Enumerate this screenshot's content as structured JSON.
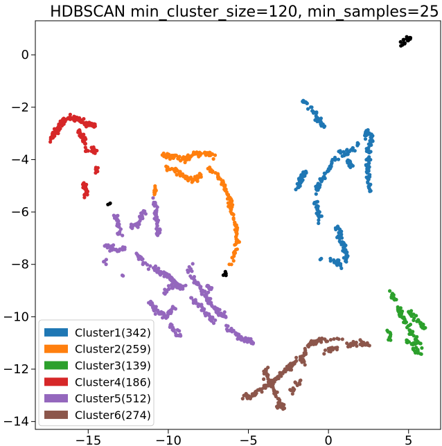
{
  "chart_data": {
    "type": "scatter",
    "title": "HDBSCAN min_cluster_size=120, min_samples=25",
    "xlabel": "",
    "ylabel": "",
    "xlim": [
      -18.3,
      7.0
    ],
    "ylim": [
      -14.3,
      1.3
    ],
    "xticks": [
      -15,
      -10,
      -5,
      0,
      5
    ],
    "yticks": [
      0,
      -2,
      -4,
      -6,
      -8,
      -10,
      -12,
      -14
    ],
    "xtick_labels": [
      "−15",
      "−10",
      "−5",
      "0",
      "5"
    ],
    "ytick_labels": [
      "0",
      "−2",
      "−4",
      "−6",
      "−8",
      "−10",
      "−12",
      "−14"
    ],
    "grid": false,
    "legend_position": "lower-left",
    "series": [
      {
        "name": "Cluster1(342)",
        "color": "#1f77b4",
        "count": 342,
        "paths": [
          [
            [
              -1.6,
              -1.75
            ],
            [
              -1.2,
              -2.0
            ],
            [
              -0.8,
              -2.3
            ],
            [
              -0.5,
              -2.6
            ],
            [
              -0.3,
              -2.8
            ]
          ],
          [
            [
              -1.9,
              -5.1
            ],
            [
              -1.7,
              -4.7
            ],
            [
              -1.4,
              -4.4
            ],
            [
              -2.1,
              -5.2
            ]
          ],
          [
            [
              -0.9,
              -5.4
            ],
            [
              -0.6,
              -5.0
            ],
            [
              -0.2,
              -4.6
            ],
            [
              0.2,
              -4.2
            ],
            [
              0.5,
              -3.9
            ]
          ],
          [
            [
              0.6,
              -3.7
            ],
            [
              1.0,
              -3.8
            ],
            [
              1.5,
              -3.6
            ],
            [
              1.9,
              -3.3
            ]
          ],
          [
            [
              2.3,
              -3.2
            ],
            [
              2.4,
              -2.9
            ],
            [
              2.7,
              -3.1
            ],
            [
              2.5,
              -3.7
            ],
            [
              2.4,
              -4.2
            ],
            [
              2.5,
              -4.7
            ],
            [
              2.6,
              -5.2
            ]
          ],
          [
            [
              -0.8,
              -5.6
            ],
            [
              -0.6,
              -6.0
            ],
            [
              -0.6,
              -6.4
            ]
          ],
          [
            [
              1.2,
              -4.0
            ],
            [
              1.5,
              -4.3
            ]
          ],
          [
            [
              0.5,
              -6.5
            ],
            [
              0.9,
              -7.2
            ],
            [
              1.1,
              -7.6
            ],
            [
              1.1,
              -7.9
            ]
          ],
          [
            [
              0.2,
              -7.8
            ],
            [
              0.7,
              -8.0
            ],
            [
              0.8,
              -8.2
            ]
          ],
          [
            [
              -0.5,
              -7.8
            ]
          ]
        ]
      },
      {
        "name": "Cluster2(259)",
        "color": "#ff7f0e",
        "count": 259,
        "paths": [
          [
            [
              -10.5,
              -3.8
            ],
            [
              -10.0,
              -3.9
            ],
            [
              -9.5,
              -3.9
            ],
            [
              -9.0,
              -4.0
            ],
            [
              -8.5,
              -3.85
            ],
            [
              -8.0,
              -3.8
            ],
            [
              -7.5,
              -3.75
            ],
            [
              -7.1,
              -3.9
            ]
          ],
          [
            [
              -10.2,
              -4.3
            ],
            [
              -9.6,
              -4.4
            ],
            [
              -9.1,
              -4.6
            ],
            [
              -8.5,
              -4.8
            ],
            [
              -8.0,
              -4.6
            ]
          ],
          [
            [
              -6.9,
              -4.6
            ],
            [
              -6.5,
              -5.0
            ],
            [
              -6.2,
              -5.5
            ],
            [
              -6.0,
              -6.0
            ],
            [
              -5.8,
              -6.5
            ],
            [
              -5.7,
              -7.0
            ],
            [
              -5.8,
              -7.5
            ],
            [
              -6.1,
              -8.0
            ]
          ],
          [
            [
              -10.9,
              -5.0
            ],
            [
              -10.8,
              -5.3
            ]
          ],
          [
            [
              -7.5,
              -4.4
            ],
            [
              -7.1,
              -4.5
            ]
          ]
        ]
      },
      {
        "name": "Cluster3(139)",
        "color": "#2ca02c",
        "count": 139,
        "paths": [
          [
            [
              3.9,
              -9.1
            ],
            [
              4.2,
              -9.4
            ],
            [
              4.4,
              -9.7
            ],
            [
              4.7,
              -10.1
            ],
            [
              5.0,
              -10.4
            ],
            [
              5.3,
              -10.7
            ],
            [
              5.6,
              -11.0
            ],
            [
              5.9,
              -11.2
            ]
          ],
          [
            [
              5.0,
              -9.8
            ],
            [
              5.4,
              -10.0
            ],
            [
              5.8,
              -10.3
            ],
            [
              6.0,
              -10.5
            ]
          ],
          [
            [
              3.7,
              -10.6
            ],
            [
              3.9,
              -10.9
            ]
          ],
          [
            [
              4.8,
              -10.9
            ],
            [
              5.3,
              -11.1
            ],
            [
              5.8,
              -11.4
            ]
          ]
        ]
      },
      {
        "name": "Cluster4(186)",
        "color": "#d62728",
        "count": 186,
        "paths": [
          [
            [
              -17.3,
              -3.2
            ],
            [
              -17.0,
              -2.9
            ],
            [
              -16.7,
              -2.6
            ],
            [
              -16.4,
              -2.45
            ],
            [
              -16.0,
              -2.4
            ],
            [
              -15.6,
              -2.5
            ],
            [
              -15.2,
              -2.6
            ],
            [
              -14.8,
              -2.7
            ],
            [
              -14.6,
              -2.7
            ]
          ],
          [
            [
              -15.6,
              -2.9
            ],
            [
              -15.3,
              -3.2
            ],
            [
              -15.1,
              -3.7
            ]
          ],
          [
            [
              -14.7,
              -3.5
            ],
            [
              -14.6,
              -3.8
            ]
          ],
          [
            [
              -14.5,
              -4.3
            ],
            [
              -14.5,
              -4.5
            ]
          ],
          [
            [
              -15.3,
              -4.95
            ],
            [
              -15.1,
              -5.2
            ],
            [
              -15.2,
              -5.4
            ]
          ]
        ]
      },
      {
        "name": "Cluster5(512)",
        "color": "#9467bd",
        "count": 512,
        "paths": [
          [
            [
              -14.0,
              -7.3
            ],
            [
              -13.5,
              -7.4
            ],
            [
              -13.0,
              -7.5
            ],
            [
              -12.7,
              -7.3
            ]
          ],
          [
            [
              -14.0,
              -7.8
            ],
            [
              -14.0,
              -8.0
            ]
          ],
          [
            [
              -13.3,
              -6.1
            ],
            [
              -13.1,
              -6.5
            ],
            [
              -13.0,
              -6.9
            ]
          ],
          [
            [
              -12.3,
              -6.6
            ],
            [
              -11.8,
              -6.4
            ],
            [
              -11.5,
              -6.0
            ]
          ],
          [
            [
              -11.0,
              -5.5
            ],
            [
              -10.8,
              -5.8
            ],
            [
              -10.7,
              -6.4
            ],
            [
              -10.6,
              -6.9
            ]
          ],
          [
            [
              -12.0,
              -7.6
            ],
            [
              -11.5,
              -7.9
            ],
            [
              -11.0,
              -8.1
            ],
            [
              -10.5,
              -8.3
            ],
            [
              -9.9,
              -8.5
            ],
            [
              -9.6,
              -8.7
            ],
            [
              -9.3,
              -8.9
            ],
            [
              -9.0,
              -8.8
            ]
          ],
          [
            [
              -11.2,
              -9.4
            ],
            [
              -10.8,
              -9.7
            ],
            [
              -10.5,
              -9.9
            ],
            [
              -10.1,
              -10.0
            ],
            [
              -9.8,
              -9.8
            ],
            [
              -9.6,
              -9.6
            ]
          ],
          [
            [
              -10.2,
              -9.1
            ],
            [
              -9.8,
              -8.9
            ],
            [
              -9.4,
              -8.6
            ]
          ],
          [
            [
              -8.6,
              -8.2
            ],
            [
              -8.4,
              -8.6
            ],
            [
              -8.0,
              -8.9
            ],
            [
              -7.6,
              -9.3
            ],
            [
              -7.2,
              -9.6
            ],
            [
              -6.8,
              -9.8
            ],
            [
              -6.4,
              -10.1
            ]
          ],
          [
            [
              -8.6,
              -9.3
            ],
            [
              -8.2,
              -9.5
            ],
            [
              -7.8,
              -9.8
            ],
            [
              -7.4,
              -10.0
            ],
            [
              -7.2,
              -10.2
            ]
          ],
          [
            [
              -6.3,
              -10.4
            ],
            [
              -5.9,
              -10.6
            ],
            [
              -5.5,
              -10.8
            ],
            [
              -5.1,
              -10.9
            ],
            [
              -4.7,
              -11.0
            ]
          ],
          [
            [
              -9.8,
              -10.3
            ],
            [
              -9.5,
              -10.6
            ],
            [
              -9.3,
              -10.7
            ]
          ],
          [
            [
              -8.8,
              -8.3
            ],
            [
              -8.5,
              -8.0
            ]
          ],
          [
            [
              -7.6,
              -8.8
            ],
            [
              -7.3,
              -9.0
            ]
          ],
          [
            [
              -12.8,
              -8.4
            ]
          ]
        ]
      },
      {
        "name": "Cluster6(274)",
        "color": "#8c564b",
        "count": 274,
        "paths": [
          [
            [
              -5.3,
              -13.0
            ],
            [
              -4.9,
              -13.1
            ],
            [
              -4.5,
              -12.9
            ],
            [
              -4.0,
              -12.7
            ],
            [
              -3.5,
              -12.5
            ],
            [
              -3.0,
              -12.2
            ],
            [
              -2.6,
              -12.0
            ],
            [
              -2.2,
              -11.8
            ],
            [
              -1.7,
              -11.5
            ]
          ],
          [
            [
              -4.1,
              -12.4
            ],
            [
              -3.9,
              -12.0
            ],
            [
              -3.7,
              -12.5
            ],
            [
              -3.4,
              -12.8
            ],
            [
              -3.2,
              -13.1
            ],
            [
              -3.0,
              -13.3
            ],
            [
              -2.8,
              -13.4
            ]
          ],
          [
            [
              -1.5,
              -12.0
            ],
            [
              -1.6,
              -11.6
            ],
            [
              -1.4,
              -11.2
            ],
            [
              -1.0,
              -11.0
            ],
            [
              -0.6,
              -10.9
            ],
            [
              -0.2,
              -10.9
            ],
            [
              0.3,
              -10.8
            ],
            [
              0.8,
              -10.8
            ]
          ],
          [
            [
              0.9,
              -11.0
            ],
            [
              1.3,
              -11.1
            ],
            [
              1.8,
              -11.0
            ],
            [
              2.2,
              -11.0
            ],
            [
              2.6,
              -11.1
            ]
          ],
          [
            [
              -0.2,
              -11.4
            ],
            [
              0.2,
              -11.2
            ],
            [
              0.6,
              -11.2
            ]
          ],
          [
            [
              -2.3,
              -12.8
            ],
            [
              -2.0,
              -12.6
            ],
            [
              -1.6,
              -12.4
            ]
          ],
          [
            [
              -3.3,
              -13.4
            ],
            [
              -2.8,
              -13.5
            ]
          ]
        ]
      },
      {
        "name": "",
        "color": "#000000",
        "count": 0,
        "paths": [
          [
            [
              4.6,
              0.45
            ],
            [
              4.7,
              0.55
            ],
            [
              4.85,
              0.62
            ],
            [
              5.1,
              0.6
            ],
            [
              4.5,
              0.4
            ]
          ],
          [
            [
              -13.7,
              -5.6
            ],
            [
              -13.6,
              -5.7
            ]
          ],
          [
            [
              -6.5,
              -8.4
            ]
          ]
        ]
      }
    ]
  }
}
